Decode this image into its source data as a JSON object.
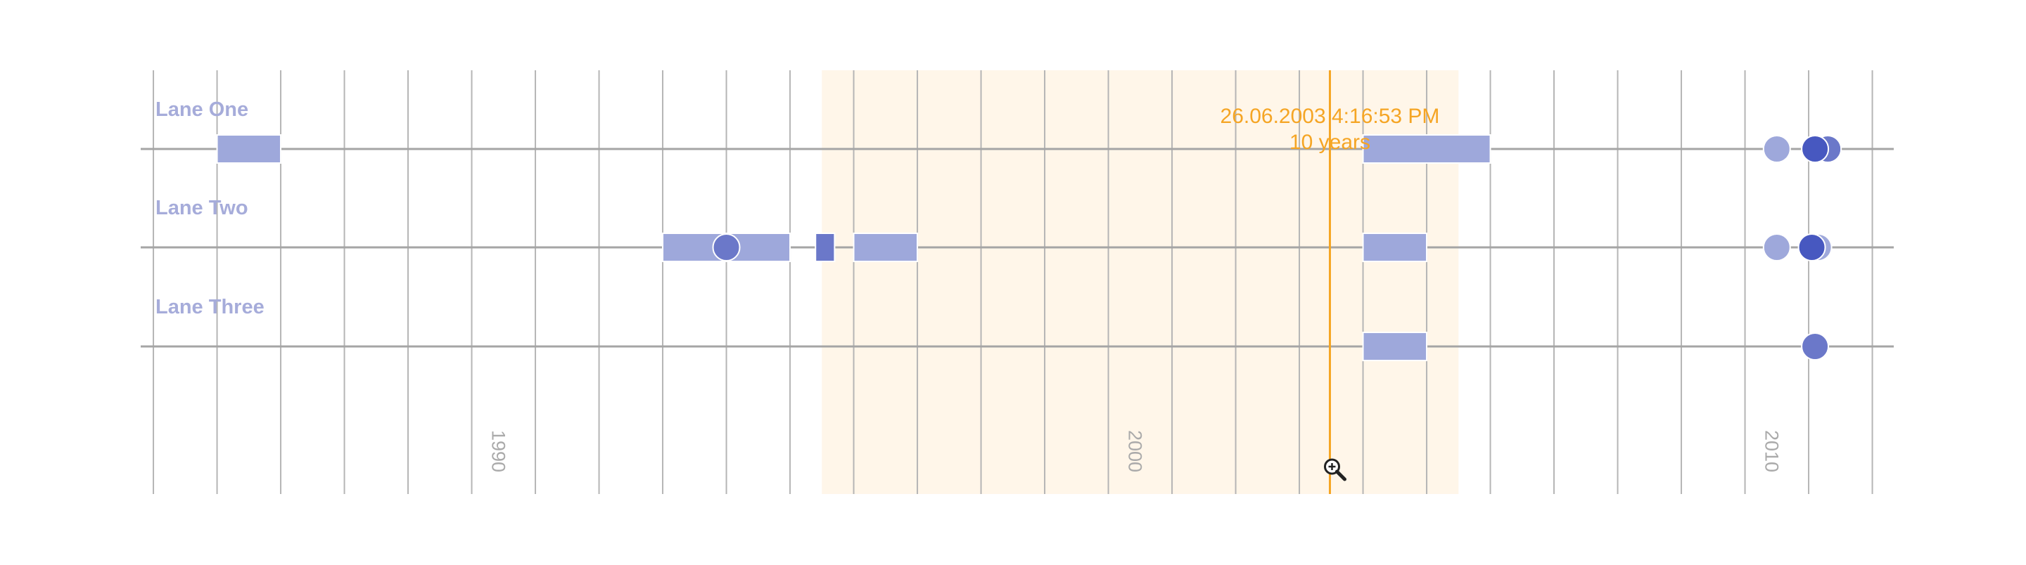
{
  "colors": {
    "event": "#9ea8db",
    "event_dark": "#6b78c9",
    "event_darker": "#4758c0",
    "lane_line": "#a5a5a5",
    "grid_line": "#b5b5b5",
    "lane_label": "#a6acda",
    "tick_label": "#aaaaaa",
    "cursor": "#f5a524",
    "highlight_fill": "#fff6e9",
    "background": "#ffffff"
  },
  "cursor": {
    "date_text": "26.06.2003 4:16:53 PM",
    "duration_text": "10 years",
    "date_value": 2003.48,
    "icon": "zoom-in-icon"
  },
  "chart_data": {
    "type": "timeline",
    "x_axis": {
      "type": "time",
      "min": 1984.9,
      "max": 2012.5,
      "grid_interval_years": 1,
      "tick_labels": [
        {
          "value": 1990,
          "label": "1990"
        },
        {
          "value": 2000,
          "label": "2000"
        },
        {
          "value": 2010,
          "label": "2010"
        }
      ]
    },
    "highlight_range": [
      1995.5,
      2005.5
    ],
    "grid": true,
    "lanes": [
      {
        "name": "Lane One",
        "events": [
          {
            "kind": "range",
            "start": 1986,
            "end": 1987,
            "color": "event"
          },
          {
            "kind": "range",
            "start": 2004,
            "end": 2006,
            "color": "event"
          },
          {
            "kind": "point",
            "date": 2010.5,
            "color": "event"
          },
          {
            "kind": "point",
            "date": 2011.3,
            "color": "event_dark"
          },
          {
            "kind": "point",
            "date": 2011.1,
            "color": "event_darker"
          }
        ]
      },
      {
        "name": "Lane Two",
        "events": [
          {
            "kind": "range",
            "start": 1993,
            "end": 1995,
            "color": "event"
          },
          {
            "kind": "range",
            "start": 1995.4,
            "end": 1995.7,
            "color": "event_dark"
          },
          {
            "kind": "point",
            "date": 1994,
            "color": "event_dark"
          },
          {
            "kind": "range",
            "start": 1996,
            "end": 1997,
            "color": "event"
          },
          {
            "kind": "range",
            "start": 2004,
            "end": 2005,
            "color": "event"
          },
          {
            "kind": "point",
            "date": 2010.5,
            "color": "event"
          },
          {
            "kind": "point",
            "date": 2011.15,
            "color": "event"
          },
          {
            "kind": "point",
            "date": 2011.05,
            "color": "event_darker"
          }
        ]
      },
      {
        "name": "Lane Three",
        "events": [
          {
            "kind": "range",
            "start": 2004,
            "end": 2005,
            "color": "event"
          },
          {
            "kind": "point",
            "date": 2011.1,
            "color": "event_dark"
          }
        ]
      }
    ]
  }
}
